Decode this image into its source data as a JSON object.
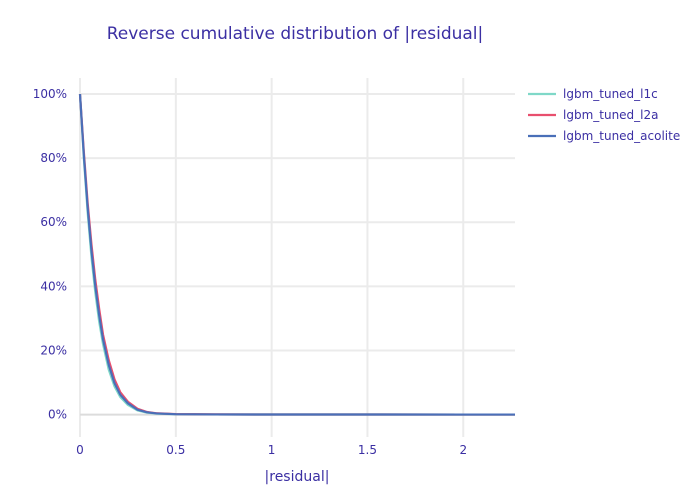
{
  "chart_data": {
    "type": "line",
    "title": "Reverse cumulative distribution of |residual|",
    "xlabel": "|residual|",
    "ylabel": "",
    "xlim": [
      0,
      2.27
    ],
    "ylim": [
      -0.07,
      1.05
    ],
    "x_ticks": [
      0,
      0.5,
      1,
      1.5,
      2
    ],
    "x_tick_labels": [
      "0",
      "0.5",
      "1",
      "1.5",
      "2"
    ],
    "y_ticks": [
      0,
      0.2,
      0.4,
      0.6,
      0.8,
      1.0
    ],
    "y_tick_labels": [
      "0%",
      "20%",
      "40%",
      "60%",
      "80%",
      "100%"
    ],
    "grid": true,
    "legend_position": "top-right",
    "series": [
      {
        "name": "lgbm_tuned_l1c",
        "color": "#7fd8c8",
        "x": [
          0,
          0.02,
          0.04,
          0.06,
          0.08,
          0.1,
          0.12,
          0.15,
          0.18,
          0.21,
          0.25,
          0.3,
          0.35,
          0.4,
          0.5,
          0.7,
          1.0,
          1.5,
          2.0,
          2.27
        ],
        "y": [
          1.0,
          0.8,
          0.63,
          0.49,
          0.38,
          0.29,
          0.22,
          0.14,
          0.088,
          0.055,
          0.03,
          0.013,
          0.006,
          0.003,
          0.001,
          0.0004,
          0.0002,
          0.0001,
          5e-05,
          0.0
        ]
      },
      {
        "name": "lgbm_tuned_l2a",
        "color": "#e84f6e",
        "x": [
          0,
          0.02,
          0.04,
          0.06,
          0.08,
          0.1,
          0.12,
          0.15,
          0.18,
          0.21,
          0.25,
          0.3,
          0.35,
          0.4,
          0.5,
          0.7,
          1.0,
          1.5,
          2.0,
          2.27
        ],
        "y": [
          1.0,
          0.82,
          0.66,
          0.53,
          0.42,
          0.33,
          0.25,
          0.17,
          0.11,
          0.07,
          0.04,
          0.018,
          0.008,
          0.004,
          0.0015,
          0.0005,
          0.0002,
          0.0001,
          5e-05,
          0.0
        ]
      },
      {
        "name": "lgbm_tuned_acolite",
        "color": "#4a6fb8",
        "x": [
          0,
          0.02,
          0.04,
          0.06,
          0.08,
          0.1,
          0.12,
          0.15,
          0.18,
          0.21,
          0.25,
          0.3,
          0.35,
          0.4,
          0.5,
          0.7,
          1.0,
          1.5,
          2.0,
          2.27
        ],
        "y": [
          1.0,
          0.81,
          0.645,
          0.51,
          0.4,
          0.31,
          0.235,
          0.155,
          0.098,
          0.062,
          0.035,
          0.015,
          0.007,
          0.0035,
          0.0012,
          0.0004,
          0.0002,
          0.0001,
          5e-05,
          0.0
        ]
      }
    ]
  }
}
